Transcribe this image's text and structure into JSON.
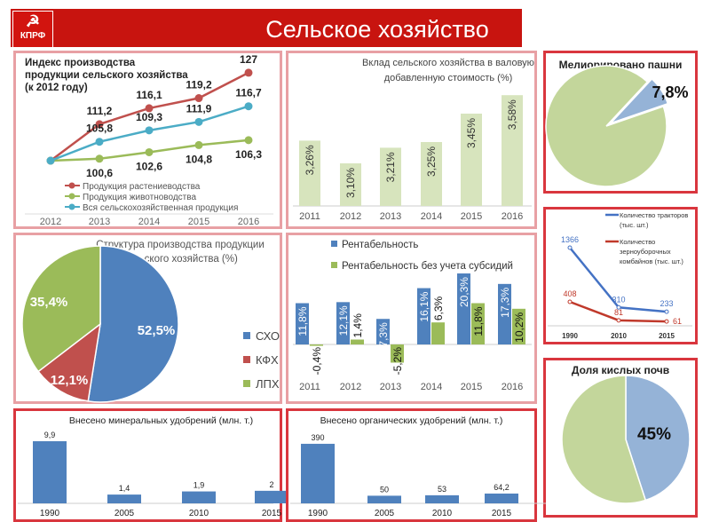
{
  "header": {
    "logo_text": "КПРФ",
    "title": "Сельское хозяйство"
  },
  "chart_data": [
    {
      "id": "index",
      "type": "line",
      "title": "Индекс производства продукции сельского хозяйства (к 2012 году)",
      "title_lines": [
        "Индекс производства",
        "продукции сельского хозяйства",
        "(к 2012 году)"
      ],
      "x": [
        "2012",
        "2013",
        "2014",
        "2015",
        "2016"
      ],
      "series": [
        {
          "name": "Продукция растениеводства",
          "color": "#c0504d",
          "values": [
            100,
            111.2,
            116.1,
            119.2,
            127
          ],
          "labels": [
            "",
            "111,2",
            "116,1",
            "119,2",
            "127"
          ]
        },
        {
          "name": "Продукция животноводства",
          "color": "#9bbb59",
          "values": [
            100,
            100.6,
            102.6,
            104.8,
            106.3
          ],
          "labels": [
            "",
            "100,6",
            "102,6",
            "104,8",
            "106,3"
          ]
        },
        {
          "name": "Вся сельскохозяйственная продукция",
          "color": "#4bacc6",
          "values": [
            100,
            105.8,
            109.3,
            111.9,
            116.7
          ],
          "labels": [
            "",
            "105,8",
            "109,3",
            "111,9",
            "116,7"
          ]
        }
      ],
      "ylim": [
        100,
        127
      ]
    },
    {
      "id": "gva",
      "type": "bar",
      "title_lines": [
        "Вклад сельского хозяйства в валовую",
        "добавленную стоимость (%)"
      ],
      "categories": [
        "2011",
        "2012",
        "2013",
        "2014",
        "2015",
        "2016"
      ],
      "values": [
        3.26,
        3.1,
        3.21,
        3.25,
        3.45,
        3.58
      ],
      "labels": [
        "3,26%",
        "3,10%",
        "3,21%",
        "3,25%",
        "3,45%",
        "3,58%"
      ],
      "ylim": [
        2.8,
        3.6
      ],
      "color": "#d7e4bd"
    },
    {
      "id": "melior",
      "type": "pie",
      "title": "Мелиорировано пашни",
      "values": [
        7.8,
        92.2
      ],
      "label": "7,8%",
      "colors": [
        "#95b3d7",
        "#c3d69b"
      ]
    },
    {
      "id": "structure",
      "type": "pie",
      "title_lines": [
        "Структура производства продукции",
        "сельского хозяйства (%)"
      ],
      "categories": [
        "СХО",
        "КФХ",
        "ЛПХ"
      ],
      "values": [
        52.5,
        12.1,
        35.4
      ],
      "labels": [
        "52,5%",
        "12,1%",
        "35,4%"
      ],
      "colors": [
        "#4f81bd",
        "#c0504d",
        "#9bbb59"
      ]
    },
    {
      "id": "profit",
      "type": "bar",
      "categories": [
        "2011",
        "2012",
        "2013",
        "2014",
        "2015",
        "2016"
      ],
      "series": [
        {
          "name": "Рентабельность",
          "color": "#4f81bd",
          "values": [
            11.8,
            12.1,
            7.3,
            16.1,
            20.3,
            17.3
          ],
          "labels": [
            "11,8%",
            "12,1%",
            "7,3%",
            "16,1%",
            "20,3%",
            "17,3%"
          ]
        },
        {
          "name": "Рентабельность без учета субсидий",
          "color": "#9bbb59",
          "values": [
            -0.4,
            1.4,
            -5.2,
            6.3,
            11.8,
            10.2
          ],
          "labels": [
            "-0,4%",
            "1,4%",
            "-5,2%",
            "6,3%",
            "11,8%",
            "10,2%"
          ]
        }
      ]
    },
    {
      "id": "machines",
      "type": "line",
      "x": [
        "1990",
        "2010",
        "2015"
      ],
      "series": [
        {
          "name": "Количество тракторов (тыс. шт.)",
          "name_lines": [
            "Количество тракторов",
            "(тыс. шт.)"
          ],
          "color": "#4472c4",
          "values": [
            1366,
            310,
            233
          ],
          "labels": [
            "1366",
            "310",
            "233"
          ]
        },
        {
          "name": "Количество зерноуборочных комбайнов (тыс. шт.)",
          "name_lines": [
            "Количество",
            "зерноуборочных",
            "комбайнов (тыс. шт.)"
          ],
          "color": "#c0392b",
          "values": [
            408,
            81,
            61
          ],
          "labels": [
            "408",
            "81",
            "61"
          ]
        }
      ]
    },
    {
      "id": "acid",
      "type": "pie",
      "title": "Доля кислых почв",
      "values": [
        45,
        55
      ],
      "label": "45%",
      "colors": [
        "#95b3d7",
        "#c3d69b"
      ]
    },
    {
      "id": "mineral",
      "type": "bar",
      "title": "Внесено минеральных удобрений (млн. т.)",
      "categories": [
        "1990",
        "2005",
        "2010",
        "2015"
      ],
      "values": [
        9.9,
        1.4,
        1.9,
        2
      ],
      "labels": [
        "9,9",
        "1,4",
        "1,9",
        "2"
      ],
      "color": "#4f81bd"
    },
    {
      "id": "organic",
      "type": "bar",
      "title": "Внесено органических удобрений (млн. т.)",
      "categories": [
        "1990",
        "2005",
        "2010",
        "2015"
      ],
      "values": [
        390,
        50,
        53,
        64.2
      ],
      "labels": [
        "390",
        "50",
        "53",
        "64,2"
      ],
      "color": "#4f81bd"
    }
  ]
}
